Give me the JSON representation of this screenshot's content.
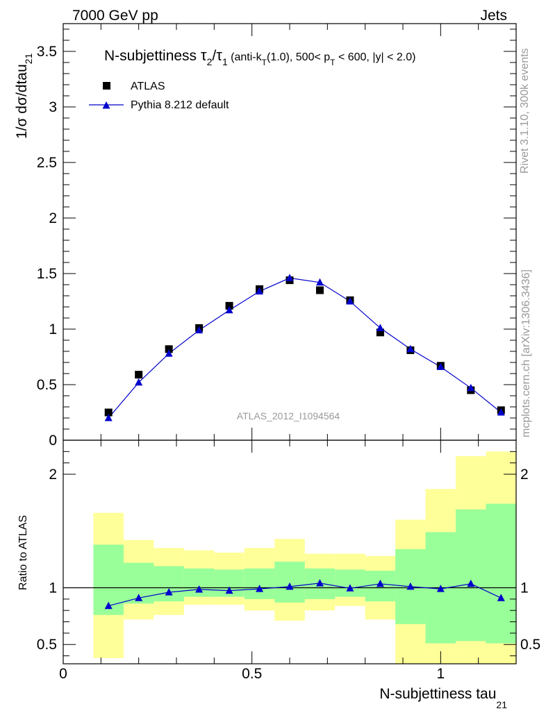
{
  "header": {
    "left": "7000 GeV pp",
    "right": "Jets"
  },
  "side": {
    "rivet": "Rivet 3.1.10,  300k events",
    "mcplots": "mcplots.cern.ch [arXiv:1306.3436]"
  },
  "colors": {
    "data": "#000000",
    "mc": "#0000cc",
    "band_outer": "#ffff99",
    "band_inner": "#99ff99"
  },
  "chart_data": [
    {
      "type": "scatter",
      "title": {
        "prefix": "N-subjettiness ",
        "tau": "τ",
        "sub2": "2",
        "slash": "/",
        "sub1": "1",
        "cond_a": " (anti-k",
        "cond_T": "T",
        "cond_b": "(1.0), 500< p",
        "cond_T2": "T",
        "cond_c": " < 600, |y| < 2.0)"
      },
      "ylabel": {
        "main": "1/σ dσ/dtau",
        "sub": "21"
      },
      "watermark": "ATLAS_2012_I1094564",
      "xlim": [
        0,
        1.2
      ],
      "ylim": [
        0,
        3.75
      ],
      "yticks": [
        0,
        0.5,
        1,
        1.5,
        2,
        2.5,
        3,
        3.5
      ],
      "ytick_labels": [
        "0",
        "0.5",
        "1",
        "1.5",
        "2",
        "2.5",
        "3",
        "3.5"
      ],
      "x": [
        0.12,
        0.2,
        0.28,
        0.36,
        0.44,
        0.52,
        0.6,
        0.68,
        0.76,
        0.84,
        0.92,
        1.0,
        1.08,
        1.16
      ],
      "series": [
        {
          "name": "ATLAS",
          "marker": "square",
          "values": [
            0.25,
            0.59,
            0.82,
            1.01,
            1.21,
            1.36,
            1.44,
            1.35,
            1.26,
            0.97,
            0.81,
            0.67,
            0.45,
            0.27
          ]
        },
        {
          "name": "Pythia 8.212 default",
          "marker": "triangle",
          "values": [
            0.2,
            0.52,
            0.78,
            0.99,
            1.17,
            1.34,
            1.46,
            1.42,
            1.25,
            1.01,
            0.82,
            0.66,
            0.47,
            0.25
          ]
        }
      ]
    },
    {
      "type": "line",
      "ylabel": "Ratio to ATLAS",
      "xlabel": {
        "main": "N-subjettiness tau",
        "sub": "21"
      },
      "xlim": [
        0,
        1.2
      ],
      "ylim": [
        0.33,
        2.3
      ],
      "xticks": [
        0,
        0.5,
        1
      ],
      "xtick_labels": [
        "0",
        "0.5",
        "1"
      ],
      "yticks": [
        0.5,
        1,
        2
      ],
      "ytick_labels": [
        "0.5",
        "1",
        "2"
      ],
      "bins": [
        {
          "lo": 0.08,
          "hi": 0.16,
          "outer": [
            0.38,
            1.66
          ],
          "inner": [
            0.76,
            1.38
          ]
        },
        {
          "lo": 0.16,
          "hi": 0.24,
          "outer": [
            0.72,
            1.42
          ],
          "inner": [
            0.86,
            1.22
          ]
        },
        {
          "lo": 0.24,
          "hi": 0.32,
          "outer": [
            0.76,
            1.35
          ],
          "inner": [
            0.88,
            1.19
          ]
        },
        {
          "lo": 0.32,
          "hi": 0.4,
          "outer": [
            0.85,
            1.33
          ],
          "inner": [
            0.92,
            1.17
          ]
        },
        {
          "lo": 0.4,
          "hi": 0.48,
          "outer": [
            0.85,
            1.31
          ],
          "inner": [
            0.92,
            1.16
          ]
        },
        {
          "lo": 0.48,
          "hi": 0.56,
          "outer": [
            0.8,
            1.35
          ],
          "inner": [
            0.9,
            1.17
          ]
        },
        {
          "lo": 0.56,
          "hi": 0.64,
          "outer": [
            0.71,
            1.43
          ],
          "inner": [
            0.87,
            1.23
          ]
        },
        {
          "lo": 0.64,
          "hi": 0.72,
          "outer": [
            0.8,
            1.3
          ],
          "inner": [
            0.9,
            1.17
          ]
        },
        {
          "lo": 0.72,
          "hi": 0.8,
          "outer": [
            0.84,
            1.3
          ],
          "inner": [
            0.92,
            1.16
          ]
        },
        {
          "lo": 0.8,
          "hi": 0.88,
          "outer": [
            0.72,
            1.28
          ],
          "inner": [
            0.88,
            1.15
          ]
        },
        {
          "lo": 0.88,
          "hi": 0.96,
          "outer": [
            0.33,
            1.6
          ],
          "inner": [
            0.68,
            1.34
          ]
        },
        {
          "lo": 0.96,
          "hi": 1.04,
          "outer": [
            0.33,
            1.87
          ],
          "inner": [
            0.51,
            1.49
          ]
        },
        {
          "lo": 1.04,
          "hi": 1.12,
          "outer": [
            0.33,
            2.16
          ],
          "inner": [
            0.53,
            1.69
          ]
        },
        {
          "lo": 1.12,
          "hi": 1.2,
          "outer": [
            0.33,
            2.2
          ],
          "inner": [
            0.51,
            1.74
          ]
        }
      ],
      "x": [
        0.12,
        0.2,
        0.28,
        0.36,
        0.44,
        0.52,
        0.6,
        0.68,
        0.76,
        0.84,
        0.92,
        1.0,
        1.08,
        1.16
      ],
      "reference": 1.0,
      "series": [
        {
          "name": "Pythia 8.212 default",
          "values": [
            0.84,
            0.91,
            0.96,
            0.985,
            0.975,
            0.99,
            1.01,
            1.04,
            0.995,
            1.035,
            1.01,
            0.99,
            1.035,
            0.91
          ]
        }
      ]
    }
  ]
}
